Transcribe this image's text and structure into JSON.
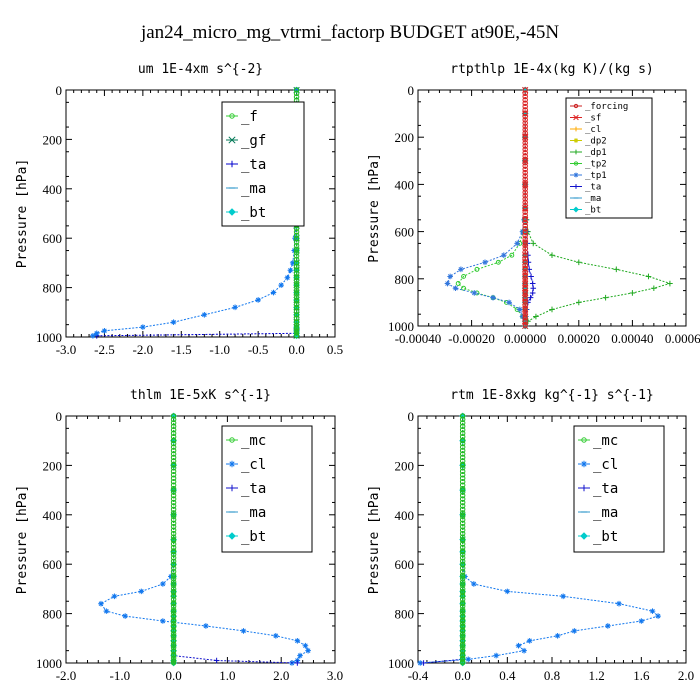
{
  "figure_title": "jan24_micro_mg_vtrmi_factorp  BUDGET at90E,-45N",
  "chart_data": [
    {
      "type": "line",
      "title": "um   1E-4xm s^{-2}",
      "ylabel": "Pressure [hPa]",
      "xlim": [
        -3.0,
        0.5
      ],
      "ylim": [
        0,
        1000
      ],
      "y_inverted": true,
      "xticks": [
        "-3.0",
        "-2.5",
        "-2.0",
        "-1.5",
        "-1.0",
        "-0.5",
        "0.0",
        "0.5"
      ],
      "xtick_values": [
        -3.0,
        -2.5,
        -2.0,
        -1.5,
        -1.0,
        -0.5,
        0.0,
        0.5
      ],
      "yticks": [
        "0",
        "200",
        "400",
        "600",
        "800",
        "1000"
      ],
      "legend_position": "top-right",
      "legend_small": false,
      "pressure": [
        0,
        100,
        200,
        300,
        400,
        500,
        550,
        600,
        650,
        700,
        730,
        760,
        790,
        820,
        850,
        880,
        910,
        940,
        960,
        975,
        985,
        995
      ],
      "series": [
        {
          "name": "_f",
          "color": "#33cc33",
          "marker": "o",
          "values": [
            0,
            0,
            0,
            0,
            0,
            0,
            0,
            0,
            0,
            0,
            0,
            0,
            0,
            0,
            0,
            0,
            0,
            0,
            0,
            0,
            0,
            0
          ]
        },
        {
          "name": "_gf",
          "color": "#007755",
          "marker": "x",
          "values": [
            0,
            0,
            0,
            0,
            0,
            0,
            0,
            0,
            0,
            0,
            0,
            0,
            0,
            0,
            0,
            0,
            0,
            0,
            0,
            0,
            0,
            0
          ]
        },
        {
          "name": "_ta",
          "color": "#0000cc",
          "marker": "+",
          "values": [
            0,
            0,
            0,
            0,
            0,
            0,
            0,
            0,
            0,
            0,
            0,
            0,
            0,
            0,
            0,
            0,
            0,
            0,
            0,
            0,
            0,
            -2.6
          ]
        },
        {
          "name": "_ma",
          "color": "#3399cc",
          "marker": "-",
          "values": [
            0,
            0,
            0,
            0,
            0,
            0,
            0,
            0,
            0,
            0,
            0,
            0,
            0,
            0,
            0,
            0,
            0,
            0,
            0,
            0,
            0,
            0
          ]
        },
        {
          "name": "_bt",
          "color": "#00cccc",
          "marker": "d",
          "values": [
            0,
            0,
            0,
            0,
            0,
            0,
            0,
            0,
            0,
            0,
            0,
            0,
            0,
            0,
            0,
            0,
            0,
            0,
            0,
            0,
            0,
            0
          ]
        },
        {
          "name": "",
          "color": "#1177ee",
          "marker": "*",
          "values": [
            0,
            0,
            0,
            0,
            0,
            0,
            -0.01,
            -0.02,
            -0.03,
            -0.05,
            -0.08,
            -0.12,
            -0.2,
            -0.3,
            -0.5,
            -0.8,
            -1.2,
            -1.6,
            -2.0,
            -2.5,
            -2.6,
            -2.65
          ]
        },
        {
          "name": "",
          "color": "#22bb22",
          "marker": "o",
          "values": [
            0,
            0,
            0,
            0,
            0,
            0,
            0,
            0,
            0,
            0,
            0,
            0,
            0,
            0,
            0,
            0,
            0,
            0,
            0,
            0,
            0,
            0
          ]
        }
      ]
    },
    {
      "type": "line",
      "title": "rtpthlp   1E-4x(kg K)/(kg s)",
      "ylabel": "Pressure [hPa]",
      "xlim": [
        -0.0004,
        0.0006
      ],
      "ylim": [
        0,
        1000
      ],
      "y_inverted": true,
      "xticks": [
        "-0.00040",
        "-0.00020",
        "0.00000",
        "0.00020",
        "0.00040",
        "0.00060"
      ],
      "xtick_values": [
        -0.0004,
        -0.0002,
        0.0,
        0.0002,
        0.0004,
        0.0006
      ],
      "yticks": [
        "0",
        "200",
        "400",
        "600",
        "800",
        "1000"
      ],
      "legend_position": "top-right",
      "legend_small": true,
      "pressure": [
        0,
        100,
        200,
        300,
        400,
        500,
        550,
        600,
        650,
        700,
        730,
        760,
        790,
        820,
        840,
        860,
        880,
        900,
        930,
        960,
        980,
        1000
      ],
      "series": [
        {
          "name": "_forcing",
          "color": "#cc2222",
          "marker": "o",
          "values": [
            0,
            0,
            0,
            0,
            0,
            0,
            0,
            0,
            0,
            0,
            0,
            0,
            0,
            0,
            0,
            0,
            0,
            0,
            0,
            0,
            0,
            0
          ]
        },
        {
          "name": "_sf",
          "color": "#dd2222",
          "marker": "x",
          "values": [
            0,
            0,
            0,
            0,
            0,
            0,
            0,
            0,
            0,
            0,
            0,
            0,
            0,
            0,
            0,
            0,
            0,
            0,
            0,
            0,
            0,
            0
          ]
        },
        {
          "name": "_cl",
          "color": "#ffaa00",
          "marker": "+",
          "values": [
            0,
            0,
            0,
            0,
            0,
            0,
            0,
            0,
            0,
            0,
            0,
            0,
            0,
            0,
            0,
            0,
            0,
            0,
            0,
            0,
            0,
            0
          ]
        },
        {
          "name": "_dp2",
          "color": "#cccc00",
          "marker": "*",
          "values": [
            0,
            0,
            0,
            0,
            0,
            0,
            0,
            0,
            0,
            0,
            0,
            0,
            0,
            0,
            0,
            0,
            0,
            0,
            0,
            0,
            0,
            0
          ]
        },
        {
          "name": "_dp1",
          "color": "#22aa22",
          "marker": "+",
          "values": [
            0,
            0,
            0,
            0,
            0,
            0,
            5e-06,
            1e-05,
            3e-05,
            0.0001,
            0.0002,
            0.00034,
            0.00046,
            0.00054,
            0.00048,
            0.0004,
            0.0003,
            0.0002,
            0.0001,
            4e-05,
            1e-05,
            0
          ]
        },
        {
          "name": "_tp2",
          "color": "#33cc33",
          "marker": "o",
          "values": [
            0,
            0,
            0,
            0,
            0,
            0,
            -3e-06,
            -8e-06,
            -2e-05,
            -5e-05,
            -0.0001,
            -0.00018,
            -0.00023,
            -0.00025,
            -0.00023,
            -0.00018,
            -0.00012,
            -7e-05,
            -3e-05,
            -1e-05,
            0,
            0
          ]
        },
        {
          "name": "_tp1",
          "color": "#3377dd",
          "marker": "*",
          "values": [
            0,
            0,
            0,
            0,
            0,
            0,
            -4e-06,
            -1e-05,
            -3e-05,
            -8e-05,
            -0.00015,
            -0.00024,
            -0.00028,
            -0.00029,
            -0.00026,
            -0.00019,
            -0.00012,
            -6e-05,
            -2e-05,
            -1e-05,
            0,
            0
          ]
        },
        {
          "name": "_ta",
          "color": "#1111cc",
          "marker": "+",
          "values": [
            0,
            0,
            0,
            0,
            0,
            0,
            2e-06,
            5e-06,
            8e-06,
            1e-05,
            1.2e-05,
            1.5e-05,
            2.2e-05,
            2.8e-05,
            3e-05,
            2.8e-05,
            2e-05,
            1e-05,
            5e-06,
            2e-06,
            1e-06,
            0
          ]
        },
        {
          "name": "_ma",
          "color": "#3399cc",
          "marker": "-",
          "values": [
            0,
            0,
            0,
            0,
            0,
            0,
            0,
            0,
            0,
            0,
            0,
            0,
            0,
            0,
            0,
            0,
            0,
            0,
            0,
            0,
            0,
            0
          ]
        },
        {
          "name": "_bt",
          "color": "#00cccc",
          "marker": "d",
          "values": [
            0,
            0,
            0,
            0,
            0,
            0,
            0,
            0,
            0,
            0,
            0,
            0,
            0,
            0,
            0,
            0,
            0,
            0,
            0,
            0,
            0,
            0
          ]
        },
        {
          "name": "",
          "color": "#dd2222",
          "marker": "o",
          "values": [
            0,
            0,
            0,
            0,
            0,
            0,
            0,
            0,
            0,
            0,
            0,
            0,
            0,
            0,
            0,
            0,
            0,
            0,
            0,
            0,
            0,
            0
          ]
        }
      ]
    },
    {
      "type": "line",
      "title": "thlm   1E-5xK s^{-1}",
      "ylabel": "Pressure [hPa]",
      "xlim": [
        -2.0,
        3.0
      ],
      "ylim": [
        0,
        1000
      ],
      "y_inverted": true,
      "xticks": [
        "-2.0",
        "-1.0",
        "0.0",
        "1.0",
        "2.0",
        "3.0"
      ],
      "xtick_values": [
        -2.0,
        -1.0,
        0.0,
        1.0,
        2.0,
        3.0
      ],
      "yticks": [
        "0",
        "200",
        "400",
        "600",
        "800",
        "1000"
      ],
      "legend_position": "top-right",
      "legend_small": false,
      "pressure": [
        0,
        100,
        200,
        300,
        400,
        500,
        550,
        600,
        650,
        680,
        710,
        730,
        760,
        790,
        810,
        830,
        850,
        870,
        890,
        910,
        930,
        950,
        970,
        990,
        1000
      ],
      "series": [
        {
          "name": "_mc",
          "color": "#33cc33",
          "marker": "o",
          "values": [
            0,
            0,
            0,
            0,
            0,
            0,
            0,
            0,
            0,
            0,
            0,
            0,
            0,
            0,
            0,
            0,
            0,
            0,
            0,
            0,
            0,
            0,
            0,
            0,
            0
          ]
        },
        {
          "name": "_cl",
          "color": "#1177ee",
          "marker": "*",
          "values": [
            0,
            0,
            0,
            0,
            0,
            0,
            0,
            0,
            -0.05,
            -0.2,
            -0.6,
            -1.1,
            -1.35,
            -1.25,
            -0.9,
            -0.2,
            0.6,
            1.3,
            1.9,
            2.3,
            2.45,
            2.5,
            2.35,
            2.3,
            2.2
          ]
        },
        {
          "name": "_ta",
          "color": "#1111cc",
          "marker": "+",
          "values": [
            0,
            0,
            0,
            0,
            0,
            0,
            0,
            0,
            0,
            0,
            0,
            0,
            0,
            0,
            0,
            0,
            0,
            0,
            0,
            0,
            0,
            0,
            0,
            0.8,
            2.3
          ]
        },
        {
          "name": "_ma",
          "color": "#3399cc",
          "marker": "-",
          "values": [
            0,
            0,
            0,
            0,
            0,
            0,
            0,
            0,
            0,
            0,
            0,
            0,
            0,
            0,
            0,
            0,
            0,
            0,
            0,
            0,
            0,
            0,
            0,
            0,
            0
          ]
        },
        {
          "name": "_bt",
          "color": "#00cccc",
          "marker": "d",
          "values": [
            0,
            0,
            0,
            0,
            0,
            0,
            0,
            0,
            0,
            0,
            0,
            0,
            0,
            0,
            0,
            0,
            0,
            0,
            0,
            0,
            0,
            0,
            0,
            0,
            0
          ]
        },
        {
          "name": "",
          "color": "#22bb22",
          "marker": "o",
          "values": [
            0,
            0,
            0,
            0,
            0,
            0,
            0,
            0,
            0,
            0,
            0,
            0,
            0,
            0,
            0,
            0,
            0,
            0,
            0,
            0,
            0,
            0,
            0,
            0,
            0
          ]
        }
      ]
    },
    {
      "type": "line",
      "title": "rtm   1E-8xkg kg^{-1} s^{-1}",
      "ylabel": "Pressure [hPa]",
      "xlim": [
        -0.4,
        2.0
      ],
      "ylim": [
        0,
        1000
      ],
      "y_inverted": true,
      "xticks": [
        "-0.4",
        "0.0",
        "0.4",
        "0.8",
        "1.2",
        "1.6",
        "2.0"
      ],
      "xtick_values": [
        -0.4,
        0.0,
        0.4,
        0.8,
        1.2,
        1.6,
        2.0
      ],
      "yticks": [
        "0",
        "200",
        "400",
        "600",
        "800",
        "1000"
      ],
      "legend_position": "top-right",
      "legend_small": false,
      "pressure": [
        0,
        100,
        200,
        300,
        400,
        500,
        550,
        600,
        650,
        680,
        710,
        730,
        760,
        790,
        810,
        830,
        850,
        870,
        890,
        910,
        930,
        950,
        970,
        985,
        1000
      ],
      "series": [
        {
          "name": "_mc",
          "color": "#33cc33",
          "marker": "o",
          "values": [
            0,
            0,
            0,
            0,
            0,
            0,
            0,
            0,
            0,
            0,
            0,
            0,
            0,
            0,
            0,
            0,
            0,
            0,
            0,
            0,
            0,
            0,
            0,
            0,
            0
          ]
        },
        {
          "name": "_cl",
          "color": "#1177ee",
          "marker": "*",
          "values": [
            0,
            0,
            0,
            0,
            0,
            0,
            0,
            0,
            0.02,
            0.1,
            0.4,
            0.9,
            1.4,
            1.7,
            1.75,
            1.6,
            1.3,
            1.0,
            0.85,
            0.6,
            0.5,
            0.55,
            0.3,
            0.05,
            -0.38
          ]
        },
        {
          "name": "_ta",
          "color": "#1111cc",
          "marker": "+",
          "values": [
            0,
            0,
            0,
            0,
            0,
            0,
            0,
            0,
            0,
            0,
            0,
            0,
            0,
            0,
            0,
            0,
            0,
            0,
            0,
            0,
            0,
            0,
            0,
            0,
            -0.35
          ]
        },
        {
          "name": "_ma",
          "color": "#3399cc",
          "marker": "-",
          "values": [
            0,
            0,
            0,
            0,
            0,
            0,
            0,
            0,
            0,
            0,
            0,
            0,
            0,
            0,
            0,
            0,
            0,
            0,
            0,
            0,
            0,
            0,
            0,
            0,
            0
          ]
        },
        {
          "name": "_bt",
          "color": "#00cccc",
          "marker": "d",
          "values": [
            0,
            0,
            0,
            0,
            0,
            0,
            0,
            0,
            0,
            0,
            0,
            0,
            0,
            0,
            0,
            0,
            0,
            0,
            0,
            0,
            0,
            0,
            0,
            0,
            0
          ]
        },
        {
          "name": "",
          "color": "#22bb22",
          "marker": "o",
          "values": [
            0,
            0,
            0,
            0,
            0,
            0,
            0,
            0,
            0,
            0,
            0,
            0,
            0,
            0,
            0,
            0,
            0,
            0,
            0,
            0,
            0,
            0,
            0,
            0,
            0
          ]
        }
      ]
    }
  ]
}
